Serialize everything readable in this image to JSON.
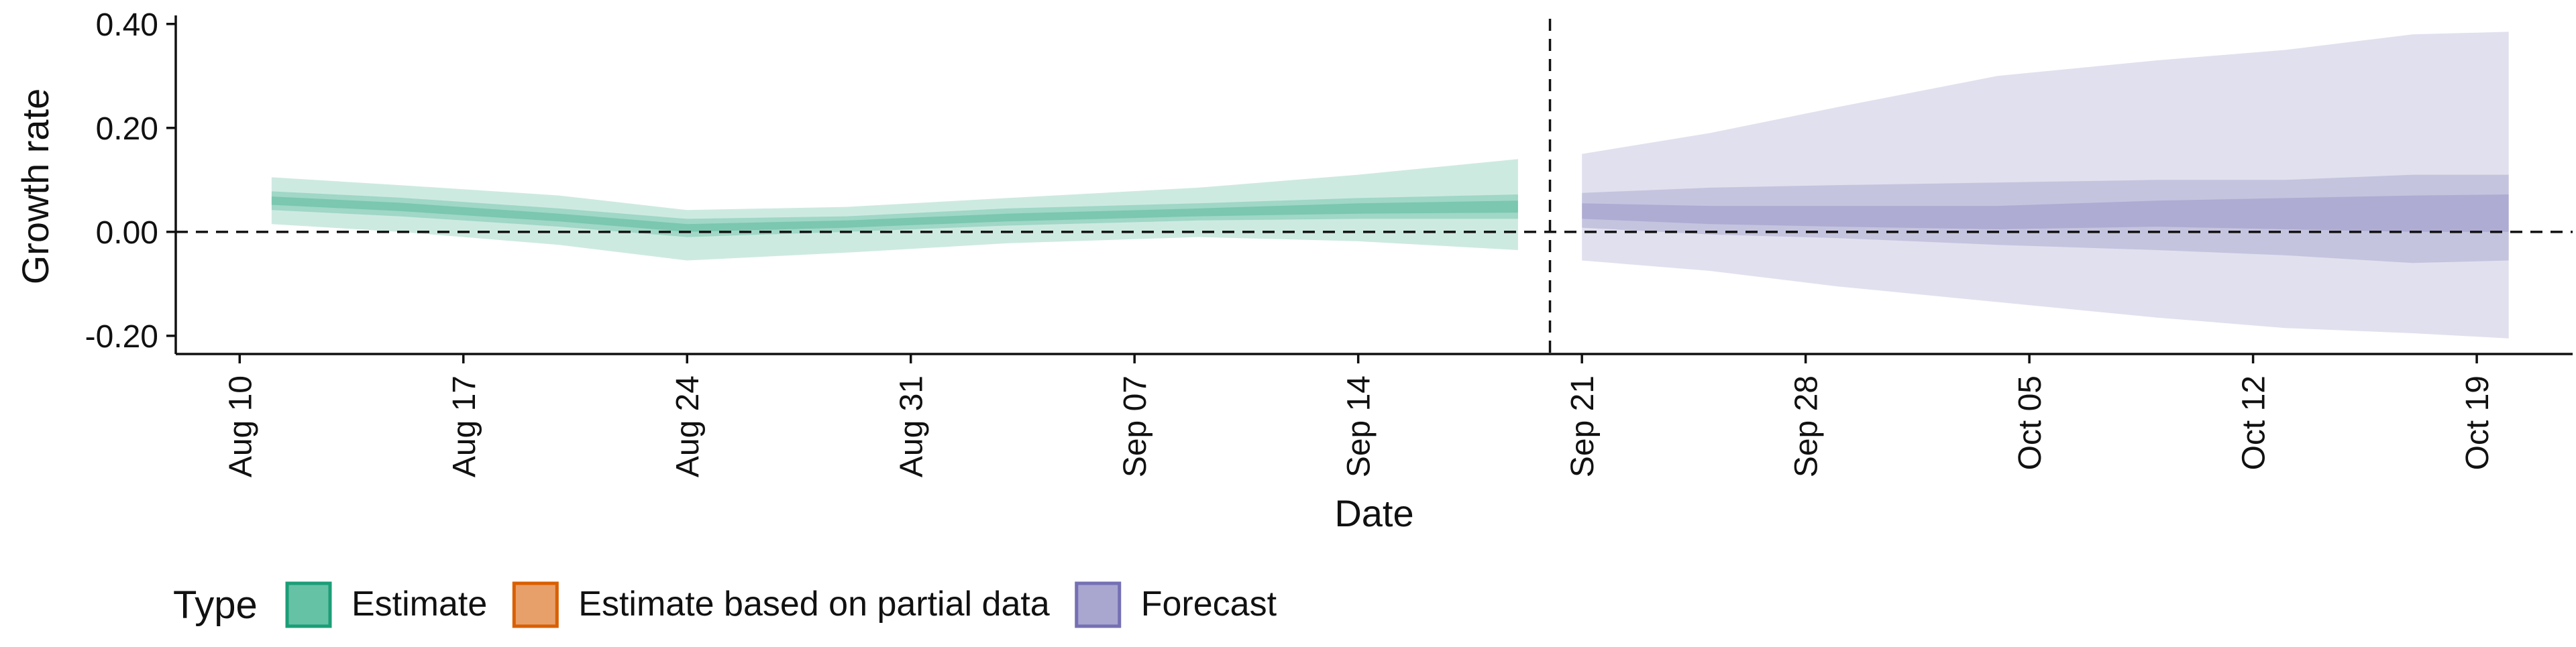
{
  "chart_data": {
    "type": "area",
    "title": "",
    "xlabel": "Date",
    "ylabel": "Growth rate",
    "x_range": [
      "2021-08-08",
      "2021-10-22"
    ],
    "ylim": [
      -0.235,
      0.41
    ],
    "yticks": [
      -0.2,
      0.0,
      0.2,
      0.4
    ],
    "ytick_labels": [
      "-0.20",
      "0.00",
      "0.20",
      "0.40"
    ],
    "xticks": [
      "2021-08-10",
      "2021-08-17",
      "2021-08-24",
      "2021-08-31",
      "2021-09-07",
      "2021-09-14",
      "2021-09-21",
      "2021-09-28",
      "2021-10-05",
      "2021-10-12",
      "2021-10-19"
    ],
    "xtick_labels": [
      "Aug 10",
      "Aug 17",
      "Aug 24",
      "Aug 31",
      "Sep 07",
      "Sep 14",
      "Sep 21",
      "Sep 28",
      "Oct 05",
      "Oct 12",
      "Oct 19"
    ],
    "grid": false,
    "reference_lines": {
      "horizontal_y": 0.0,
      "vertical_date": "2021-09-20"
    },
    "legend": {
      "position": "bottom-left",
      "title": "Type",
      "entries": [
        {
          "label": "Estimate",
          "fill": "#66c2a5",
          "border": "#1b9e77"
        },
        {
          "label": "Estimate based on partial data",
          "fill": "#e8a06a",
          "border": "#d95f02"
        },
        {
          "label": "Forecast",
          "fill": "#a9a6d0",
          "border": "#7570b3"
        }
      ]
    },
    "series": [
      {
        "name": "Estimate",
        "color": "#1b9e77",
        "start_date": "2021-08-11",
        "end_date": "2021-09-19",
        "points": [
          {
            "x": "2021-08-11",
            "lo90": 0.015,
            "lo50": 0.042,
            "lo20": 0.052,
            "hi20": 0.068,
            "hi50": 0.078,
            "hi90": 0.105
          },
          {
            "x": "2021-08-15",
            "lo90": 0.0,
            "lo50": 0.03,
            "lo20": 0.04,
            "hi20": 0.056,
            "hi50": 0.066,
            "hi90": 0.09
          },
          {
            "x": "2021-08-20",
            "lo90": -0.025,
            "lo50": 0.01,
            "lo20": 0.02,
            "hi20": 0.035,
            "hi50": 0.045,
            "hi90": 0.07
          },
          {
            "x": "2021-08-24",
            "lo90": -0.055,
            "lo50": -0.01,
            "lo20": 0.0,
            "hi20": 0.015,
            "hi50": 0.025,
            "hi90": 0.042
          },
          {
            "x": "2021-08-29",
            "lo90": -0.04,
            "lo50": 0.0,
            "lo20": 0.008,
            "hi20": 0.022,
            "hi50": 0.03,
            "hi90": 0.048
          },
          {
            "x": "2021-09-03",
            "lo90": -0.022,
            "lo50": 0.012,
            "lo20": 0.02,
            "hi20": 0.035,
            "hi50": 0.045,
            "hi90": 0.065
          },
          {
            "x": "2021-09-09",
            "lo90": -0.01,
            "lo50": 0.022,
            "lo20": 0.03,
            "hi20": 0.045,
            "hi50": 0.055,
            "hi90": 0.085
          },
          {
            "x": "2021-09-14",
            "lo90": -0.018,
            "lo50": 0.025,
            "lo20": 0.035,
            "hi20": 0.055,
            "hi50": 0.065,
            "hi90": 0.11
          },
          {
            "x": "2021-09-19",
            "lo90": -0.035,
            "lo50": 0.025,
            "lo20": 0.037,
            "hi20": 0.06,
            "hi50": 0.072,
            "hi90": 0.14
          }
        ]
      },
      {
        "name": "Forecast",
        "color": "#7570b3",
        "start_date": "2021-09-21",
        "end_date": "2021-10-20",
        "points": [
          {
            "x": "2021-09-21",
            "lo90": -0.055,
            "lo50": 0.008,
            "lo20": 0.025,
            "hi20": 0.055,
            "hi50": 0.075,
            "hi90": 0.15
          },
          {
            "x": "2021-09-25",
            "lo90": -0.075,
            "lo50": -0.005,
            "lo20": 0.015,
            "hi20": 0.05,
            "hi50": 0.085,
            "hi90": 0.19
          },
          {
            "x": "2021-09-29",
            "lo90": -0.105,
            "lo50": -0.012,
            "lo20": 0.01,
            "hi20": 0.05,
            "hi50": 0.09,
            "hi90": 0.24
          },
          {
            "x": "2021-10-04",
            "lo90": -0.135,
            "lo50": -0.025,
            "lo20": 0.005,
            "hi20": 0.05,
            "hi50": 0.095,
            "hi90": 0.3
          },
          {
            "x": "2021-10-09",
            "lo90": -0.165,
            "lo50": -0.035,
            "lo20": 0.01,
            "hi20": 0.06,
            "hi50": 0.1,
            "hi90": 0.33
          },
          {
            "x": "2021-10-13",
            "lo90": -0.185,
            "lo50": -0.045,
            "lo20": 0.005,
            "hi20": 0.065,
            "hi50": 0.1,
            "hi90": 0.35
          },
          {
            "x": "2021-10-17",
            "lo90": -0.195,
            "lo50": -0.06,
            "lo20": 0.0,
            "hi20": 0.07,
            "hi50": 0.11,
            "hi90": 0.38
          },
          {
            "x": "2021-10-20",
            "lo90": -0.205,
            "lo50": -0.055,
            "lo20": 0.0,
            "hi20": 0.072,
            "hi50": 0.11,
            "hi90": 0.385
          }
        ]
      }
    ]
  }
}
